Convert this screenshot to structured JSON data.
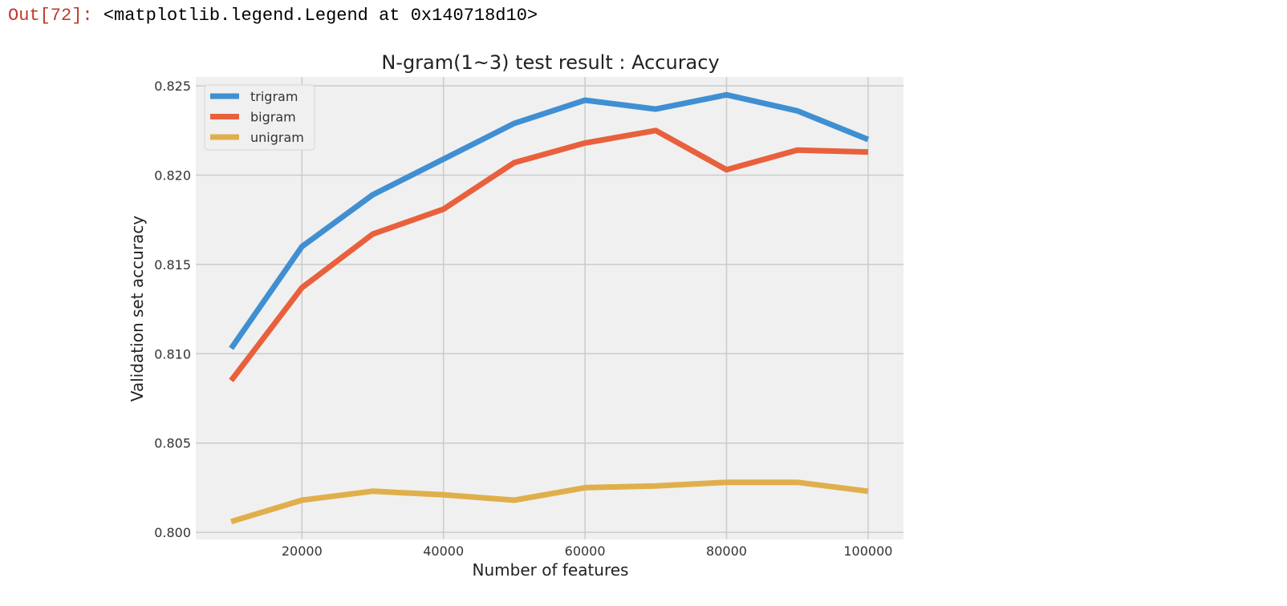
{
  "output": {
    "prompt": "Out[72]:",
    "text": "<matplotlib.legend.Legend at 0x140718d10>"
  },
  "colors": {
    "prompt": "#c0392b",
    "plot_background": "#f0f0f0",
    "grid": "#cbcbcb",
    "trigram": "#3f8fd2",
    "bigram": "#e8603c",
    "unigram": "#e0af4b"
  },
  "chart_data": {
    "type": "line",
    "title": "N-gram(1~3) test result : Accuracy",
    "xlabel": "Number of features",
    "ylabel": "Validation set accuracy",
    "x": [
      10000,
      20000,
      30000,
      40000,
      50000,
      60000,
      70000,
      80000,
      90000,
      100000
    ],
    "xlim": [
      5000,
      105000
    ],
    "ylim": [
      0.7996,
      0.8255
    ],
    "xticks": [
      20000,
      40000,
      60000,
      80000,
      100000
    ],
    "xtick_labels": [
      "20000",
      "40000",
      "60000",
      "80000",
      "100000"
    ],
    "yticks": [
      0.8,
      0.805,
      0.81,
      0.815,
      0.82,
      0.825
    ],
    "ytick_labels": [
      "0.800",
      "0.805",
      "0.810",
      "0.815",
      "0.820",
      "0.825"
    ],
    "grid": true,
    "legend_position": "top-left",
    "series": [
      {
        "name": "trigram",
        "color": "#3f8fd2",
        "values": [
          0.8103,
          0.816,
          0.8189,
          0.8209,
          0.8229,
          0.8242,
          0.8237,
          0.8245,
          0.8236,
          0.822
        ]
      },
      {
        "name": "bigram",
        "color": "#e8603c",
        "values": [
          0.8085,
          0.8137,
          0.8167,
          0.8181,
          0.8207,
          0.8218,
          0.8225,
          0.8203,
          0.8214,
          0.8213
        ]
      },
      {
        "name": "unigram",
        "color": "#e0af4b",
        "values": [
          0.8006,
          0.8018,
          0.8023,
          0.8021,
          0.8018,
          0.8025,
          0.8026,
          0.8028,
          0.8028,
          0.8023
        ]
      }
    ]
  }
}
